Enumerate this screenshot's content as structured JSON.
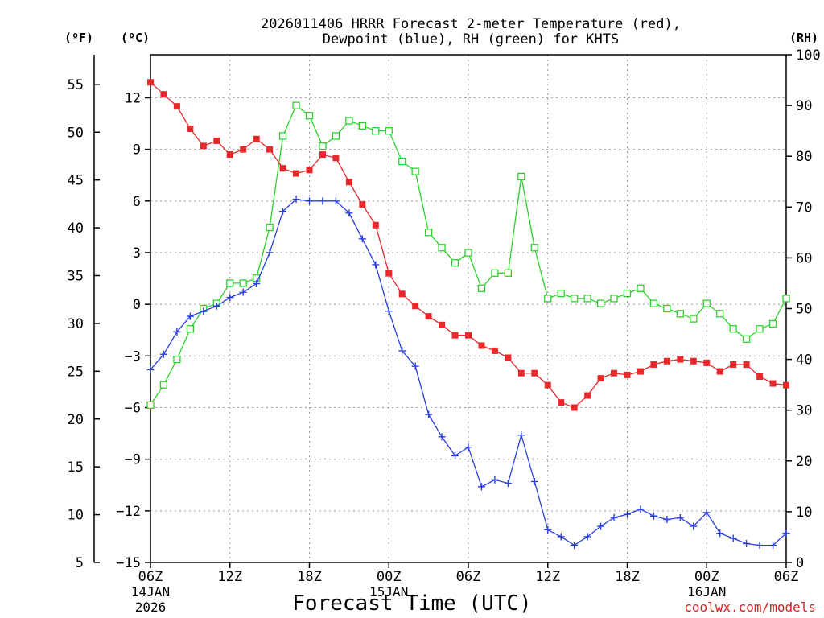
{
  "chart_data": {
    "type": "line",
    "title_line1": "2026011406 HRRR Forecast 2-meter Temperature (red),",
    "title_line2": "Dewpoint (blue), RH (green) for KHTS",
    "xlabel": "Forecast Time (UTC)",
    "credit": "coolwx.com/models",
    "unit_f": "(ºF)",
    "unit_c": "(ºC)",
    "unit_rh": "(RH)",
    "y_c_range": [
      -15,
      14.5
    ],
    "y_rh_range": [
      0,
      100
    ],
    "x_range": [
      0,
      48
    ],
    "ticks_c": [
      12,
      9,
      6,
      3,
      0,
      -3,
      -6,
      -9,
      -12,
      -15
    ],
    "ticks_c_labels": [
      "12",
      "9",
      "6",
      "3",
      "0",
      "−3",
      "−6",
      "−9",
      "−12",
      "−15"
    ],
    "ticks_f": [
      55,
      50,
      45,
      40,
      35,
      30,
      25,
      20,
      15,
      10,
      5
    ],
    "ticks_f_labels": [
      "55",
      "50",
      "45",
      "40",
      "35",
      "30",
      "25",
      "20",
      "15",
      "10",
      "5"
    ],
    "ticks_rh": [
      100,
      90,
      80,
      70,
      60,
      50,
      40,
      30,
      20,
      10,
      0
    ],
    "ticks_rh_labels": [
      "100",
      "90",
      "80",
      "70",
      "60",
      "50",
      "40",
      "30",
      "20",
      "10",
      "0"
    ],
    "x_ticks": [
      0,
      6,
      12,
      18,
      24,
      30,
      36,
      42,
      48
    ],
    "x_tick_labels": [
      "06Z",
      "12Z",
      "18Z",
      "00Z",
      "06Z",
      "12Z",
      "18Z",
      "00Z",
      "06Z"
    ],
    "date_labels": [
      {
        "hour": 0,
        "line1": "14JAN",
        "line2": "2026"
      },
      {
        "hour": 18,
        "line1": "15JAN",
        "line2": ""
      },
      {
        "hour": 42,
        "line1": "16JAN",
        "line2": ""
      }
    ],
    "series": [
      {
        "name": "Temperature",
        "unit": "C",
        "color": "#e8282b",
        "marker": "filled-square",
        "values": [
          12.9,
          12.2,
          11.5,
          10.2,
          9.2,
          9.5,
          8.7,
          9.0,
          9.6,
          9.0,
          7.9,
          7.6,
          7.8,
          8.7,
          8.5,
          7.1,
          5.8,
          4.6,
          1.8,
          0.6,
          -0.1,
          -0.7,
          -1.2,
          -1.8,
          -1.8,
          -2.4,
          -2.7,
          -3.1,
          -4.0,
          -4.0,
          -4.7,
          -5.7,
          -6.0,
          -5.3,
          -4.3,
          -4.0,
          -4.1,
          -3.9,
          -3.5,
          -3.3,
          -3.2,
          -3.3,
          -3.4,
          -3.9,
          -3.5,
          -3.5,
          -4.2,
          -4.6,
          -4.7
        ]
      },
      {
        "name": "Dewpoint",
        "unit": "C",
        "color": "#2a3ee0",
        "marker": "plus",
        "values": [
          -3.8,
          -2.9,
          -1.6,
          -0.7,
          -0.4,
          -0.1,
          0.4,
          0.7,
          1.2,
          3.0,
          5.4,
          6.1,
          6.0,
          6.0,
          6.0,
          5.3,
          3.8,
          2.3,
          -0.4,
          -2.7,
          -3.6,
          -6.4,
          -7.7,
          -8.8,
          -8.3,
          -10.6,
          -10.2,
          -10.4,
          -7.6,
          -10.3,
          -13.1,
          -13.5,
          -14.0,
          -13.5,
          -12.9,
          -12.4,
          -12.2,
          -11.9,
          -12.3,
          -12.5,
          -12.4,
          -12.9,
          -12.1,
          -13.3,
          -13.6,
          -13.9,
          -14.0,
          -14.0,
          -13.3
        ]
      },
      {
        "name": "RH",
        "unit": "%",
        "color": "#2bd12b",
        "marker": "open-square",
        "values": [
          31,
          35,
          40,
          46,
          50,
          51,
          55,
          55,
          56,
          66,
          84,
          90,
          88,
          82,
          84,
          87,
          86,
          85,
          85,
          79,
          77,
          65,
          62,
          59,
          61,
          54,
          57,
          57,
          76,
          62,
          52,
          53,
          52,
          52,
          51,
          52,
          53,
          54,
          51,
          50,
          49,
          48,
          51,
          49,
          46,
          44,
          46,
          47,
          52
        ]
      }
    ]
  }
}
